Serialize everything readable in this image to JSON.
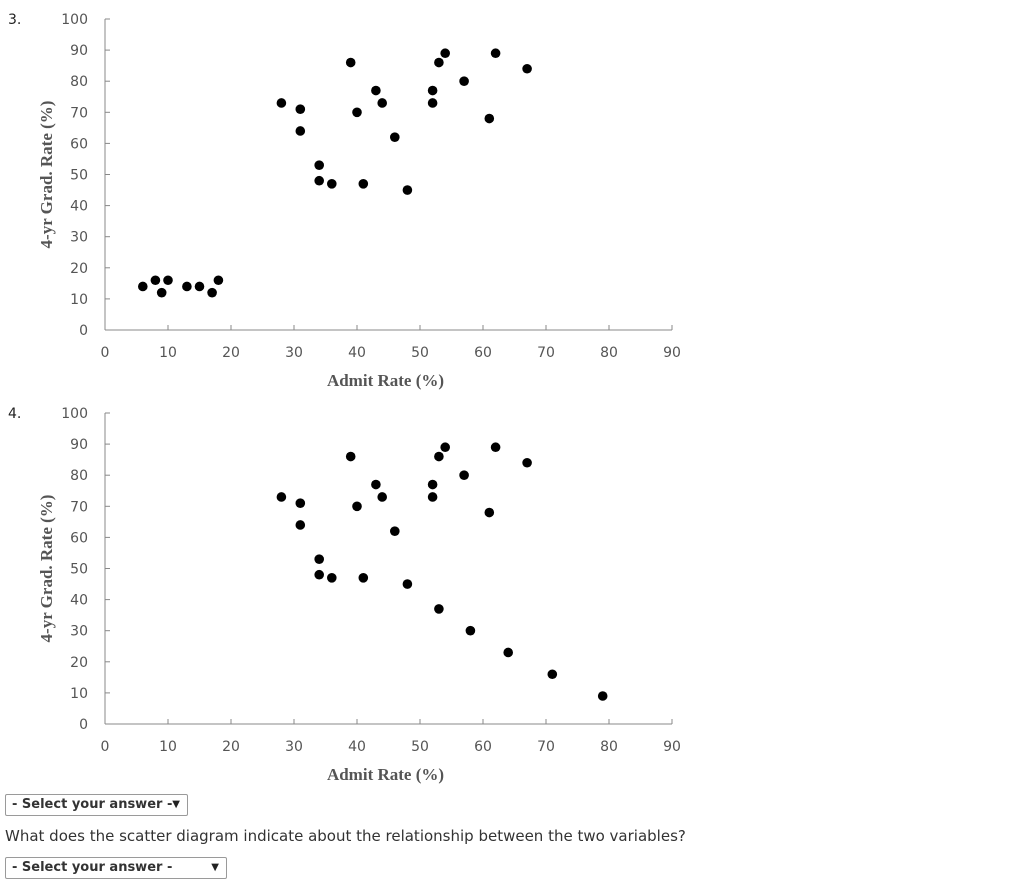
{
  "questions": [
    {
      "number": "3."
    },
    {
      "number": "4."
    }
  ],
  "chart_data": [
    {
      "type": "scatter",
      "xlabel": "Admit Rate (%)",
      "ylabel": "4-yr Grad. Rate (%)",
      "xlim": [
        0,
        90
      ],
      "ylim": [
        0,
        100
      ],
      "x_ticks": [
        0,
        10,
        20,
        30,
        40,
        50,
        60,
        70,
        80,
        90
      ],
      "y_ticks": [
        0,
        10,
        20,
        30,
        40,
        50,
        60,
        70,
        80,
        90,
        100
      ],
      "grid": false,
      "points": [
        [
          6,
          14
        ],
        [
          8,
          16
        ],
        [
          9,
          12
        ],
        [
          10,
          16
        ],
        [
          13,
          14
        ],
        [
          15,
          14
        ],
        [
          17,
          12
        ],
        [
          18,
          16
        ],
        [
          28,
          73
        ],
        [
          31,
          71
        ],
        [
          31,
          64
        ],
        [
          34,
          53
        ],
        [
          34,
          48
        ],
        [
          36,
          47
        ],
        [
          39,
          86
        ],
        [
          40,
          70
        ],
        [
          41,
          47
        ],
        [
          43,
          77
        ],
        [
          44,
          73
        ],
        [
          46,
          62
        ],
        [
          48,
          45
        ],
        [
          52,
          77
        ],
        [
          52,
          73
        ],
        [
          53,
          86
        ],
        [
          54,
          89
        ],
        [
          57,
          80
        ],
        [
          61,
          68
        ],
        [
          62,
          89
        ],
        [
          67,
          84
        ]
      ]
    },
    {
      "type": "scatter",
      "xlabel": "Admit Rate (%)",
      "ylabel": "4-yr Grad. Rate (%)",
      "xlim": [
        0,
        90
      ],
      "ylim": [
        0,
        100
      ],
      "x_ticks": [
        0,
        10,
        20,
        30,
        40,
        50,
        60,
        70,
        80,
        90
      ],
      "y_ticks": [
        0,
        10,
        20,
        30,
        40,
        50,
        60,
        70,
        80,
        90,
        100
      ],
      "grid": false,
      "points": [
        [
          28,
          73
        ],
        [
          31,
          71
        ],
        [
          31,
          64
        ],
        [
          34,
          53
        ],
        [
          34,
          48
        ],
        [
          36,
          47
        ],
        [
          39,
          86
        ],
        [
          40,
          70
        ],
        [
          41,
          47
        ],
        [
          43,
          77
        ],
        [
          44,
          73
        ],
        [
          46,
          62
        ],
        [
          48,
          45
        ],
        [
          52,
          77
        ],
        [
          52,
          73
        ],
        [
          53,
          86
        ],
        [
          54,
          89
        ],
        [
          57,
          80
        ],
        [
          61,
          68
        ],
        [
          62,
          89
        ],
        [
          67,
          84
        ],
        [
          53,
          37
        ],
        [
          58,
          30
        ],
        [
          64,
          23
        ],
        [
          71,
          16
        ],
        [
          79,
          9
        ]
      ]
    }
  ],
  "select_1": {
    "label": "- Select your answer -",
    "arrow": "▼"
  },
  "question_text": "What does the scatter diagram indicate about the relationship between the two variables?",
  "select_2": {
    "label": "- Select your answer -",
    "arrow": "▼"
  }
}
